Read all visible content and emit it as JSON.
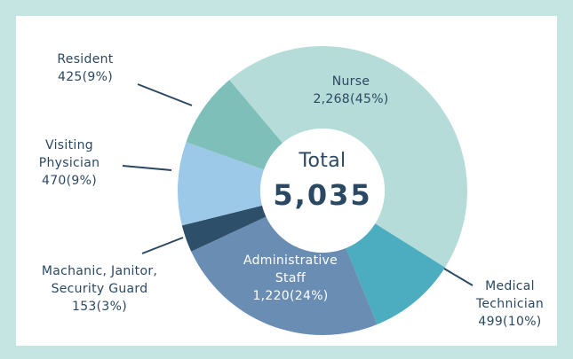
{
  "chart_data": {
    "type": "donut",
    "categories": [
      [
        "Nurse"
      ],
      [
        "Medical",
        "Technician"
      ],
      [
        "Administrative",
        "Staff"
      ],
      [
        "Machanic, Janitor,",
        "Security Guard"
      ],
      [
        "Visiting",
        "Physician"
      ],
      [
        "Resident"
      ]
    ],
    "values": [
      2268,
      499,
      1220,
      153,
      470,
      425
    ],
    "value_labels": [
      "2,268(45%)",
      "499(10%)",
      "1,220(24%)",
      "153(3%)",
      "470(9%)",
      "425(9%)"
    ],
    "colors": [
      "#b6dcd9",
      "#4badbf",
      "#6a8db4",
      "#2e4f6a",
      "#9dc9e9",
      "#7ec0b9"
    ],
    "center_title": "Total",
    "total": {
      "value": 5035,
      "label": "5,035"
    }
  }
}
